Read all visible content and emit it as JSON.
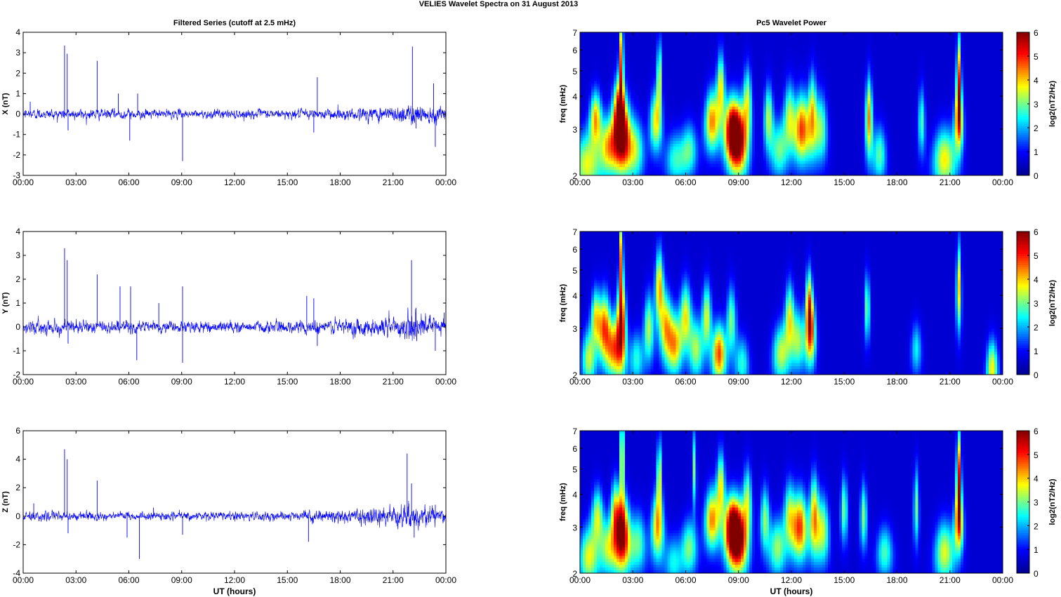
{
  "figure": {
    "title": "VELIES Wavelet Spectra on 31 August    2013",
    "left_title": "Filtered Series (cutoff at 2.5 mHz)",
    "right_title": "Pc5 Wavelet Power",
    "xlabel": "UT (hours)"
  },
  "chart_data": [
    {
      "type": "line",
      "component": "X",
      "ylabel": "X (nT)",
      "xlim": [
        0,
        24
      ],
      "ylim": [
        -3,
        4
      ],
      "x_ticks": [
        "00:00",
        "03:00",
        "06:00",
        "09:00",
        "12:00",
        "15:00",
        "18:00",
        "21:00",
        "00:00"
      ],
      "y_ticks": [
        -3,
        -2,
        -1,
        0,
        1,
        2,
        3,
        4
      ],
      "color": "#0000ff",
      "noise_amplitude": [
        [
          0,
          0.25
        ],
        [
          2,
          0.28
        ],
        [
          9,
          0.22
        ],
        [
          16,
          0.25
        ],
        [
          19,
          0.35
        ],
        [
          21,
          0.45
        ],
        [
          22,
          0.55
        ],
        [
          24,
          0.4
        ]
      ],
      "spikes": [
        [
          0.4,
          0.6
        ],
        [
          2.35,
          3.35
        ],
        [
          2.5,
          2.95
        ],
        [
          2.55,
          -0.8
        ],
        [
          4.2,
          2.6
        ],
        [
          5.4,
          1.0
        ],
        [
          6.05,
          -1.3
        ],
        [
          6.5,
          1.0
        ],
        [
          9.05,
          -2.3
        ],
        [
          16.7,
          1.8
        ],
        [
          16.5,
          -0.9
        ],
        [
          22.1,
          3.3
        ],
        [
          22.3,
          -0.7
        ],
        [
          23.3,
          1.5
        ],
        [
          23.4,
          -1.6
        ]
      ]
    },
    {
      "type": "line",
      "component": "Y",
      "ylabel": "Y (nT)",
      "xlim": [
        0,
        24
      ],
      "ylim": [
        -2,
        4
      ],
      "x_ticks": [
        "00:00",
        "03:00",
        "06:00",
        "09:00",
        "12:00",
        "15:00",
        "18:00",
        "21:00",
        "00:00"
      ],
      "y_ticks": [
        -2,
        -1,
        0,
        1,
        2,
        3,
        4
      ],
      "color": "#0000ff",
      "noise_amplitude": [
        [
          0,
          0.3
        ],
        [
          2,
          0.3
        ],
        [
          9,
          0.25
        ],
        [
          16,
          0.28
        ],
        [
          19,
          0.4
        ],
        [
          21,
          0.5
        ],
        [
          22,
          0.6
        ],
        [
          24,
          0.45
        ]
      ],
      "spikes": [
        [
          2.35,
          3.3
        ],
        [
          2.5,
          2.8
        ],
        [
          2.55,
          -0.7
        ],
        [
          4.2,
          2.2
        ],
        [
          5.5,
          1.7
        ],
        [
          6.1,
          1.7
        ],
        [
          6.45,
          -1.4
        ],
        [
          7.7,
          1.0
        ],
        [
          9.05,
          1.7
        ],
        [
          9.05,
          -1.5
        ],
        [
          16.1,
          1.3
        ],
        [
          16.5,
          1.2
        ],
        [
          16.7,
          -0.8
        ],
        [
          22.05,
          2.8
        ],
        [
          22.3,
          0.8
        ],
        [
          23.4,
          -1.0
        ],
        [
          23.9,
          0.6
        ]
      ]
    },
    {
      "type": "line",
      "component": "Z",
      "ylabel": "Z (nT)",
      "xlim": [
        0,
        24
      ],
      "ylim": [
        -4,
        6
      ],
      "x_ticks": [
        "00:00",
        "03:00",
        "06:00",
        "09:00",
        "12:00",
        "15:00",
        "18:00",
        "21:00",
        "00:00"
      ],
      "y_ticks": [
        -4,
        -2,
        0,
        2,
        4,
        6
      ],
      "color": "#0000ff",
      "noise_amplitude": [
        [
          0,
          0.35
        ],
        [
          2,
          0.35
        ],
        [
          9,
          0.3
        ],
        [
          16,
          0.35
        ],
        [
          19,
          0.55
        ],
        [
          21,
          0.8
        ],
        [
          22,
          1.0
        ],
        [
          24,
          0.5
        ]
      ],
      "spikes": [
        [
          0.6,
          0.9
        ],
        [
          2.35,
          4.7
        ],
        [
          2.5,
          4.0
        ],
        [
          2.55,
          -1.2
        ],
        [
          4.2,
          2.5
        ],
        [
          5.9,
          -1.5
        ],
        [
          6.6,
          -3.0
        ],
        [
          7.4,
          0.6
        ],
        [
          9.05,
          -1.3
        ],
        [
          16.2,
          -1.8
        ],
        [
          21.8,
          4.4
        ],
        [
          22.05,
          2.3
        ],
        [
          22.2,
          -1.5
        ],
        [
          23.4,
          0.8
        ]
      ]
    },
    {
      "type": "heatmap",
      "component": "X",
      "ylabel": "freq (mHz)",
      "colorbar_label": "log2(nT2/Hz)",
      "xlim": [
        0,
        24
      ],
      "ylim": [
        2,
        7
      ],
      "y_scale": "log",
      "x_ticks": [
        "00:00",
        "03:00",
        "06:00",
        "09:00",
        "12:00",
        "15:00",
        "18:00",
        "21:00",
        "00:00"
      ],
      "y_ticks": [
        2,
        3,
        4,
        5,
        6,
        7
      ],
      "clim": [
        0,
        6
      ],
      "colorbar_ticks": [
        0,
        1,
        2,
        3,
        4,
        5,
        6
      ],
      "colormap": [
        "#00008f",
        "#0000ff",
        "#00ffff",
        "#ffff00",
        "#ff0000",
        "#800000"
      ],
      "background_value": 0.6,
      "blobs": [
        [
          0.4,
          2.2,
          0.5,
          3.0,
          2.6
        ],
        [
          0.9,
          3.3,
          0.25,
          3.5,
          2.0
        ],
        [
          1.6,
          2.6,
          0.3,
          3.0,
          2.2
        ],
        [
          2.2,
          3.6,
          0.25,
          3.2,
          2.5
        ],
        [
          2.4,
          2.8,
          0.35,
          5.6,
          3.4
        ],
        [
          2.35,
          5.5,
          0.12,
          4.0,
          5.5
        ],
        [
          3.2,
          2.5,
          0.3,
          2.2,
          2.5
        ],
        [
          4.3,
          3.2,
          0.25,
          3.2,
          2.5
        ],
        [
          4.5,
          4.8,
          0.12,
          3.0,
          3.2
        ],
        [
          5.4,
          2.3,
          0.35,
          2.0,
          2.0
        ],
        [
          6.2,
          2.5,
          0.3,
          2.2,
          2.0
        ],
        [
          7.5,
          3.2,
          0.3,
          3.8,
          2.5
        ],
        [
          8.0,
          4.3,
          0.2,
          3.2,
          3.0
        ],
        [
          8.6,
          3.0,
          0.3,
          4.2,
          2.5
        ],
        [
          9.0,
          2.7,
          0.35,
          5.0,
          3.2
        ],
        [
          9.5,
          3.8,
          0.2,
          2.8,
          3.0
        ],
        [
          10.7,
          3.3,
          0.2,
          2.8,
          2.8
        ],
        [
          11.3,
          2.5,
          0.3,
          2.3,
          2.3
        ],
        [
          11.9,
          3.3,
          0.25,
          2.8,
          3.0
        ],
        [
          12.6,
          3.0,
          0.3,
          4.2,
          3.0
        ],
        [
          13.2,
          3.4,
          0.2,
          3.2,
          4.0
        ],
        [
          13.7,
          3.0,
          0.25,
          2.5,
          3.0
        ],
        [
          16.4,
          3.3,
          0.15,
          3.8,
          4.0
        ],
        [
          17.0,
          2.4,
          0.25,
          2.3,
          2.2
        ],
        [
          19.4,
          3.2,
          0.15,
          2.2,
          3.0
        ],
        [
          20.7,
          2.3,
          0.4,
          3.2,
          2.5
        ],
        [
          21.5,
          4.5,
          0.12,
          4.2,
          6.0
        ],
        [
          21.5,
          3.2,
          0.2,
          3.0,
          2.5
        ]
      ]
    },
    {
      "type": "heatmap",
      "component": "Y",
      "ylabel": "freq (mHz)",
      "colorbar_label": "log2(nT2/Hz)",
      "xlim": [
        0,
        24
      ],
      "ylim": [
        2,
        7
      ],
      "y_scale": "log",
      "x_ticks": [
        "00:00",
        "03:00",
        "06:00",
        "09:00",
        "12:00",
        "15:00",
        "18:00",
        "21:00",
        "00:00"
      ],
      "y_ticks": [
        2,
        3,
        4,
        5,
        6,
        7
      ],
      "clim": [
        0,
        6
      ],
      "colorbar_ticks": [
        0,
        1,
        2,
        3,
        4,
        5,
        6
      ],
      "colormap": [
        "#00008f",
        "#0000ff",
        "#00ffff",
        "#ffff00",
        "#ff0000",
        "#800000"
      ],
      "background_value": 0.6,
      "blobs": [
        [
          0.5,
          2.3,
          0.25,
          2.8,
          2.2
        ],
        [
          0.9,
          3.3,
          0.2,
          3.0,
          2.2
        ],
        [
          1.4,
          3.0,
          0.25,
          4.0,
          3.0
        ],
        [
          1.9,
          2.5,
          0.25,
          3.2,
          2.3
        ],
        [
          2.35,
          3.0,
          0.2,
          5.0,
          5.0
        ],
        [
          2.35,
          5.6,
          0.1,
          3.8,
          5.0
        ],
        [
          3.2,
          2.3,
          0.25,
          2.0,
          2.0
        ],
        [
          3.9,
          3.0,
          0.2,
          2.8,
          3.0
        ],
        [
          4.5,
          4.3,
          0.2,
          3.6,
          3.5
        ],
        [
          4.9,
          3.0,
          0.25,
          3.4,
          3.0
        ],
        [
          5.4,
          2.6,
          0.25,
          3.2,
          2.5
        ],
        [
          6.0,
          3.3,
          0.25,
          3.2,
          3.0
        ],
        [
          6.6,
          2.5,
          0.25,
          2.6,
          2.5
        ],
        [
          7.2,
          3.3,
          0.2,
          3.0,
          3.0
        ],
        [
          7.9,
          2.4,
          0.25,
          4.2,
          2.3
        ],
        [
          8.6,
          3.2,
          0.2,
          2.5,
          3.0
        ],
        [
          9.2,
          2.2,
          0.25,
          2.0,
          2.0
        ],
        [
          11.4,
          2.4,
          0.3,
          2.8,
          2.3
        ],
        [
          11.9,
          3.3,
          0.2,
          3.0,
          3.0
        ],
        [
          12.4,
          2.7,
          0.25,
          2.6,
          2.5
        ],
        [
          13.1,
          2.9,
          0.2,
          4.0,
          3.0
        ],
        [
          13.0,
          3.8,
          0.15,
          3.0,
          3.0
        ],
        [
          16.3,
          3.6,
          0.12,
          2.6,
          3.0
        ],
        [
          19.1,
          2.5,
          0.2,
          1.8,
          2.0
        ],
        [
          21.5,
          4.3,
          0.12,
          3.4,
          5.0
        ],
        [
          23.4,
          2.1,
          0.2,
          3.2,
          2.2
        ]
      ]
    },
    {
      "type": "heatmap",
      "component": "Z",
      "ylabel": "freq (mHz)",
      "colorbar_label": "log2(nT2/Hz)",
      "xlim": [
        0,
        24
      ],
      "ylim": [
        2,
        7
      ],
      "y_scale": "log",
      "x_ticks": [
        "00:00",
        "03:00",
        "06:00",
        "09:00",
        "12:00",
        "15:00",
        "18:00",
        "21:00",
        "00:00"
      ],
      "y_ticks": [
        2,
        3,
        4,
        5,
        6,
        7
      ],
      "clim": [
        0,
        6
      ],
      "colorbar_ticks": [
        0,
        1,
        2,
        3,
        4,
        5,
        6
      ],
      "colormap": [
        "#00008f",
        "#0000ff",
        "#00ffff",
        "#ffff00",
        "#ff0000",
        "#800000"
      ],
      "background_value": 0.6,
      "blobs": [
        [
          0.5,
          2.3,
          0.35,
          3.0,
          2.4
        ],
        [
          1.0,
          3.3,
          0.25,
          2.8,
          2.2
        ],
        [
          1.6,
          2.5,
          0.3,
          2.6,
          2.2
        ],
        [
          2.0,
          3.5,
          0.2,
          2.6,
          2.5
        ],
        [
          2.4,
          2.8,
          0.3,
          5.6,
          3.4
        ],
        [
          2.4,
          5.8,
          0.1,
          4.2,
          6.0
        ],
        [
          3.3,
          2.6,
          0.3,
          2.3,
          2.5
        ],
        [
          4.4,
          3.0,
          0.25,
          3.6,
          3.0
        ],
        [
          4.5,
          4.8,
          0.12,
          3.0,
          3.2
        ],
        [
          5.3,
          2.2,
          0.3,
          1.8,
          2.0
        ],
        [
          6.2,
          2.5,
          0.3,
          2.5,
          2.2
        ],
        [
          6.5,
          5.0,
          0.1,
          2.5,
          4.0
        ],
        [
          7.5,
          3.2,
          0.3,
          3.8,
          2.5
        ],
        [
          8.0,
          4.3,
          0.2,
          3.2,
          3.0
        ],
        [
          8.6,
          3.0,
          0.3,
          4.4,
          2.5
        ],
        [
          9.0,
          2.7,
          0.35,
          5.2,
          3.2
        ],
        [
          9.5,
          3.8,
          0.2,
          2.6,
          3.0
        ],
        [
          10.5,
          3.2,
          0.2,
          2.6,
          2.8
        ],
        [
          11.2,
          2.5,
          0.3,
          2.6,
          2.3
        ],
        [
          11.9,
          3.3,
          0.25,
          2.8,
          3.0
        ],
        [
          12.5,
          3.0,
          0.3,
          4.2,
          3.0
        ],
        [
          13.3,
          3.3,
          0.2,
          3.6,
          4.0
        ],
        [
          13.8,
          2.9,
          0.25,
          2.8,
          3.0
        ],
        [
          15.0,
          3.5,
          0.15,
          2.4,
          3.0
        ],
        [
          16.1,
          3.3,
          0.15,
          2.5,
          3.0
        ],
        [
          17.3,
          2.4,
          0.3,
          2.2,
          2.0
        ],
        [
          19.1,
          3.6,
          0.12,
          2.4,
          4.0
        ],
        [
          20.7,
          2.4,
          0.35,
          3.0,
          2.5
        ],
        [
          21.5,
          4.6,
          0.12,
          4.6,
          6.0
        ],
        [
          21.5,
          3.1,
          0.2,
          3.2,
          2.5
        ]
      ]
    }
  ]
}
